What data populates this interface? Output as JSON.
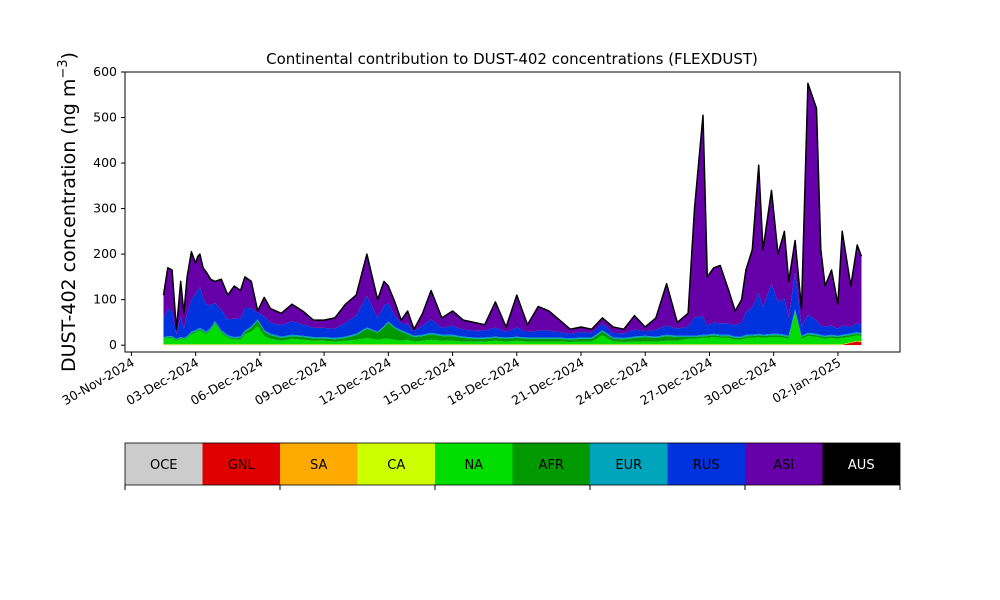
{
  "chart_data": {
    "type": "area",
    "stacked": true,
    "title": "Continental contribution to DUST-402 concentrations (FLEXDUST)",
    "ylabel_main": "DUST-402 concentration (ng m",
    "ylabel_sup": "−3",
    "ylabel_close": ")",
    "xlabel": "",
    "ylim": [
      -15,
      600
    ],
    "yticks": [
      0,
      100,
      200,
      300,
      400,
      500,
      600
    ],
    "x_start": "2024-11-30",
    "x_end": "2025-01-02",
    "xlim_days": [
      -0.3,
      35.9
    ],
    "xtick_days": [
      0,
      3,
      6,
      9,
      12,
      15,
      18,
      21,
      24,
      27,
      30,
      33
    ],
    "xtick_labels": [
      "30-Nov-2024",
      "03-Dec-2024",
      "06-Dec-2024",
      "09-Dec-2024",
      "12-Dec-2024",
      "15-Dec-2024",
      "18-Dec-2024",
      "21-Dec-2024",
      "24-Dec-2024",
      "27-Dec-2024",
      "30-Dec-2024",
      "02-Jan-2025"
    ],
    "x_days": [
      1.5,
      1.7,
      1.9,
      2.1,
      2.3,
      2.45,
      2.6,
      2.8,
      3.0,
      3.1,
      3.2,
      3.35,
      3.5,
      3.7,
      3.9,
      4.2,
      4.5,
      4.8,
      5.1,
      5.3,
      5.6,
      5.9,
      6.2,
      6.5,
      7.0,
      7.5,
      8.0,
      8.5,
      9.0,
      9.5,
      10.0,
      10.5,
      11.0,
      11.5,
      11.8,
      12.0,
      12.3,
      12.6,
      12.9,
      13.2,
      13.6,
      14.0,
      14.5,
      15.0,
      15.5,
      16.0,
      16.5,
      17.0,
      17.5,
      18.0,
      18.5,
      19.0,
      19.5,
      20.0,
      20.5,
      21.0,
      21.5,
      22.0,
      22.5,
      23.0,
      23.5,
      24.0,
      24.5,
      25.0,
      25.5,
      26.0,
      26.3,
      26.7,
      26.9,
      27.2,
      27.5,
      27.9,
      28.2,
      28.5,
      28.7,
      29.0,
      29.3,
      29.5,
      29.9,
      30.2,
      30.5,
      30.7,
      31.0,
      31.3,
      31.6,
      32.0,
      32.2,
      32.4,
      32.7,
      33.0,
      33.2,
      33.6,
      33.9,
      34.1
    ],
    "total": [
      110,
      170,
      165,
      35,
      140,
      70,
      150,
      205,
      180,
      195,
      200,
      170,
      160,
      145,
      140,
      145,
      110,
      130,
      120,
      150,
      140,
      75,
      105,
      80,
      70,
      90,
      75,
      55,
      55,
      60,
      90,
      110,
      200,
      100,
      140,
      130,
      95,
      55,
      75,
      35,
      70,
      120,
      60,
      75,
      55,
      50,
      45,
      95,
      40,
      110,
      45,
      85,
      75,
      55,
      35,
      40,
      35,
      60,
      40,
      35,
      65,
      40,
      60,
      135,
      50,
      70,
      300,
      505,
      150,
      170,
      175,
      120,
      75,
      100,
      165,
      210,
      395,
      210,
      340,
      200,
      250,
      140,
      230,
      80,
      575,
      520,
      210,
      130,
      165,
      90,
      250,
      130,
      220,
      195
    ],
    "series": [
      {
        "name": "OCE",
        "color": "#cccccc",
        "values": [
          0.3,
          0.3,
          0.3,
          0.3,
          0.3,
          0.3,
          0.3,
          0.3,
          0.3,
          0.3,
          0.3,
          0.3,
          0.3,
          0.3,
          0.3,
          0.3,
          0.3,
          0.3,
          0.3,
          0.3,
          0.3,
          0.3,
          0.3,
          0.3,
          0.3,
          0.3,
          0.3,
          0.3,
          0.3,
          0.3,
          0.3,
          0.3,
          0.3,
          0.3,
          0.3,
          0.3,
          0.3,
          0.3,
          0.3,
          0.3,
          0.3,
          0.3,
          0.3,
          0.3,
          0.3,
          0.3,
          0.3,
          0.3,
          0.3,
          0.3,
          0.3,
          0.3,
          0.3,
          0.3,
          0.3,
          0.3,
          0.3,
          0.3,
          0.3,
          0.3,
          0.3,
          0.3,
          0.3,
          0.3,
          0.3,
          0.3,
          0.3,
          0.3,
          0.3,
          0.3,
          0.3,
          0.3,
          0.3,
          0.3,
          0.3,
          0.3,
          0.3,
          0.3,
          0.3,
          0.3,
          0.3,
          0.3,
          0.3,
          0.3,
          0.3,
          0.3,
          0.3,
          0.3,
          0.3,
          0.3,
          0.3,
          0.3,
          0.3,
          0.3
        ]
      },
      {
        "name": "GNL",
        "color": "#e00000",
        "values": [
          0.3,
          0.3,
          0.3,
          0.3,
          0.3,
          0.3,
          0.3,
          0.3,
          0.3,
          0.3,
          0.3,
          0.3,
          0.3,
          0.3,
          0.3,
          0.3,
          0.3,
          0.3,
          0.3,
          0.3,
          0.3,
          0.3,
          0.3,
          0.3,
          0.3,
          0.3,
          0.3,
          0.3,
          0.3,
          0.3,
          0.3,
          0.3,
          0.3,
          0.3,
          0.3,
          0.3,
          0.3,
          0.3,
          0.3,
          0.3,
          0.3,
          0.3,
          0.3,
          0.3,
          0.3,
          0.3,
          0.3,
          0.3,
          0.3,
          0.3,
          0.3,
          0.3,
          0.3,
          0.3,
          0.3,
          0.3,
          0.3,
          0.3,
          0.3,
          0.3,
          0.3,
          0.3,
          0.3,
          0.3,
          0.3,
          0.3,
          0.3,
          0.3,
          0.3,
          0.3,
          0.3,
          0.3,
          0.3,
          0.3,
          0.3,
          0.3,
          0.3,
          0.3,
          0.3,
          0.3,
          0.3,
          0.3,
          0.3,
          0.3,
          0.3,
          0.3,
          0.3,
          0.3,
          0.3,
          0.3,
          0.3,
          5,
          8,
          6
        ]
      },
      {
        "name": "SA",
        "color": "#ffaa00",
        "values": [
          0.3,
          0.3,
          0.3,
          0.3,
          0.3,
          0.3,
          0.3,
          0.3,
          0.3,
          0.3,
          0.3,
          0.3,
          0.3,
          0.3,
          0.3,
          0.3,
          0.3,
          0.3,
          0.3,
          0.3,
          0.3,
          0.3,
          0.3,
          0.3,
          0.3,
          0.3,
          0.3,
          0.3,
          0.3,
          0.3,
          0.3,
          0.3,
          0.3,
          0.3,
          0.3,
          0.3,
          0.3,
          0.3,
          0.3,
          0.3,
          0.3,
          0.3,
          0.3,
          0.3,
          0.3,
          0.3,
          0.3,
          0.3,
          0.3,
          0.3,
          0.3,
          0.3,
          0.3,
          0.3,
          0.3,
          0.3,
          0.3,
          0.3,
          0.3,
          0.3,
          0.3,
          0.3,
          0.3,
          0.3,
          0.3,
          0.3,
          0.3,
          0.3,
          0.3,
          0.3,
          0.3,
          0.3,
          0.3,
          0.3,
          0.3,
          0.3,
          0.3,
          0.3,
          0.3,
          0.3,
          0.3,
          0.3,
          0.3,
          0.3,
          0.3,
          0.3,
          0.3,
          0.3,
          0.3,
          0.3,
          0.3,
          0.3,
          0.3,
          0.3
        ]
      },
      {
        "name": "CA",
        "color": "#ccff00",
        "values": [
          1,
          1,
          1,
          1,
          1,
          1,
          1,
          1,
          1,
          1,
          1,
          1,
          1,
          1,
          1,
          1,
          1,
          1,
          1,
          1,
          1,
          1,
          1,
          1,
          1,
          1,
          1,
          1,
          1,
          1,
          1,
          1,
          1,
          1,
          1,
          1,
          1,
          1,
          1,
          1,
          1,
          1,
          1,
          1,
          1,
          1,
          1,
          1,
          1,
          1,
          1,
          1,
          1,
          1,
          1,
          1,
          1,
          1,
          1,
          1,
          1,
          1,
          1,
          1,
          1,
          1,
          1,
          1,
          1,
          1,
          1,
          1,
          1,
          1,
          1,
          1,
          1,
          1,
          1,
          1,
          1,
          1,
          1,
          1,
          1,
          1,
          1,
          1,
          1,
          1,
          1,
          1,
          1,
          1
        ]
      },
      {
        "name": "NA",
        "color": "#00dd00",
        "values": [
          12,
          14,
          14,
          8,
          12,
          10,
          14,
          22,
          25,
          28,
          30,
          26,
          22,
          30,
          45,
          25,
          14,
          10,
          10,
          22,
          28,
          40,
          18,
          12,
          8,
          12,
          10,
          8,
          8,
          6,
          8,
          10,
          14,
          10,
          12,
          12,
          10,
          8,
          10,
          6,
          8,
          10,
          8,
          8,
          6,
          6,
          6,
          8,
          6,
          8,
          6,
          6,
          6,
          6,
          5,
          6,
          6,
          20,
          6,
          5,
          6,
          6,
          6,
          8,
          8,
          12,
          12,
          14,
          14,
          16,
          14,
          14,
          10,
          10,
          14,
          14,
          16,
          14,
          16,
          16,
          14,
          12,
          70,
          12,
          18,
          16,
          14,
          12,
          14,
          12,
          14,
          12,
          12,
          12
        ]
      },
      {
        "name": "AFR",
        "color": "#009900",
        "values": [
          2,
          2,
          2,
          2,
          2,
          2,
          2,
          3,
          3,
          3,
          3,
          3,
          3,
          3,
          3,
          3,
          3,
          3,
          4,
          5,
          8,
          12,
          10,
          8,
          6,
          6,
          6,
          5,
          5,
          5,
          6,
          10,
          20,
          15,
          25,
          35,
          25,
          20,
          12,
          10,
          10,
          12,
          10,
          10,
          8,
          6,
          6,
          6,
          6,
          6,
          6,
          6,
          6,
          6,
          5,
          6,
          6,
          8,
          6,
          6,
          8,
          10,
          8,
          10,
          8,
          4,
          4,
          4,
          4,
          4,
          4,
          4,
          4,
          4,
          4,
          4,
          4,
          4,
          4,
          4,
          4,
          4,
          4,
          4,
          4,
          4,
          4,
          4,
          4,
          4,
          4,
          4,
          4,
          4
        ]
      },
      {
        "name": "EUR",
        "color": "#00a4bb",
        "values": [
          2,
          2,
          2,
          2,
          2,
          2,
          2,
          3,
          3,
          3,
          3,
          3,
          3,
          3,
          3,
          3,
          3,
          3,
          3,
          3,
          3,
          3,
          3,
          3,
          3,
          3,
          3,
          3,
          3,
          3,
          3,
          3,
          3,
          3,
          3,
          3,
          3,
          3,
          3,
          3,
          3,
          3,
          3,
          3,
          3,
          3,
          3,
          3,
          3,
          3,
          3,
          3,
          3,
          3,
          3,
          3,
          3,
          3,
          3,
          3,
          3,
          3,
          3,
          3,
          3,
          3,
          3,
          3,
          3,
          3,
          3,
          3,
          3,
          3,
          3,
          3,
          3,
          3,
          3,
          3,
          3,
          3,
          3,
          3,
          3,
          3,
          3,
          3,
          3,
          3,
          3,
          3,
          3,
          3
        ]
      },
      {
        "name": "RUS",
        "color": "#0033dd",
        "values": [
          40,
          60,
          55,
          10,
          45,
          20,
          50,
          70,
          80,
          85,
          90,
          70,
          60,
          50,
          40,
          45,
          35,
          40,
          40,
          50,
          40,
          15,
          30,
          25,
          25,
          30,
          25,
          20,
          20,
          20,
          30,
          40,
          70,
          30,
          45,
          40,
          25,
          15,
          20,
          10,
          20,
          30,
          15,
          20,
          15,
          15,
          15,
          20,
          12,
          20,
          12,
          15,
          15,
          12,
          10,
          12,
          10,
          15,
          10,
          10,
          15,
          10,
          15,
          20,
          15,
          20,
          40,
          40,
          20,
          25,
          25,
          25,
          25,
          30,
          50,
          60,
          90,
          60,
          110,
          70,
          80,
          40,
          80,
          20,
          40,
          30,
          20,
          20,
          20,
          15,
          20,
          15,
          20,
          18
        ]
      }
    ],
    "top_series": {
      "name": "ASI",
      "color": "#6600a8"
    },
    "legend": [
      {
        "name": "OCE",
        "color": "#cccccc"
      },
      {
        "name": "GNL",
        "color": "#e00000"
      },
      {
        "name": "SA",
        "color": "#ffaa00"
      },
      {
        "name": "CA",
        "color": "#ccff00"
      },
      {
        "name": "NA",
        "color": "#00dd00"
      },
      {
        "name": "AFR",
        "color": "#009900"
      },
      {
        "name": "EUR",
        "color": "#00a4bb"
      },
      {
        "name": "RUS",
        "color": "#0033dd"
      },
      {
        "name": "ASI",
        "color": "#6600a8"
      },
      {
        "name": "AUS",
        "color": "#000000"
      }
    ],
    "legend_placement": "bottom colorbar",
    "grid": false
  }
}
